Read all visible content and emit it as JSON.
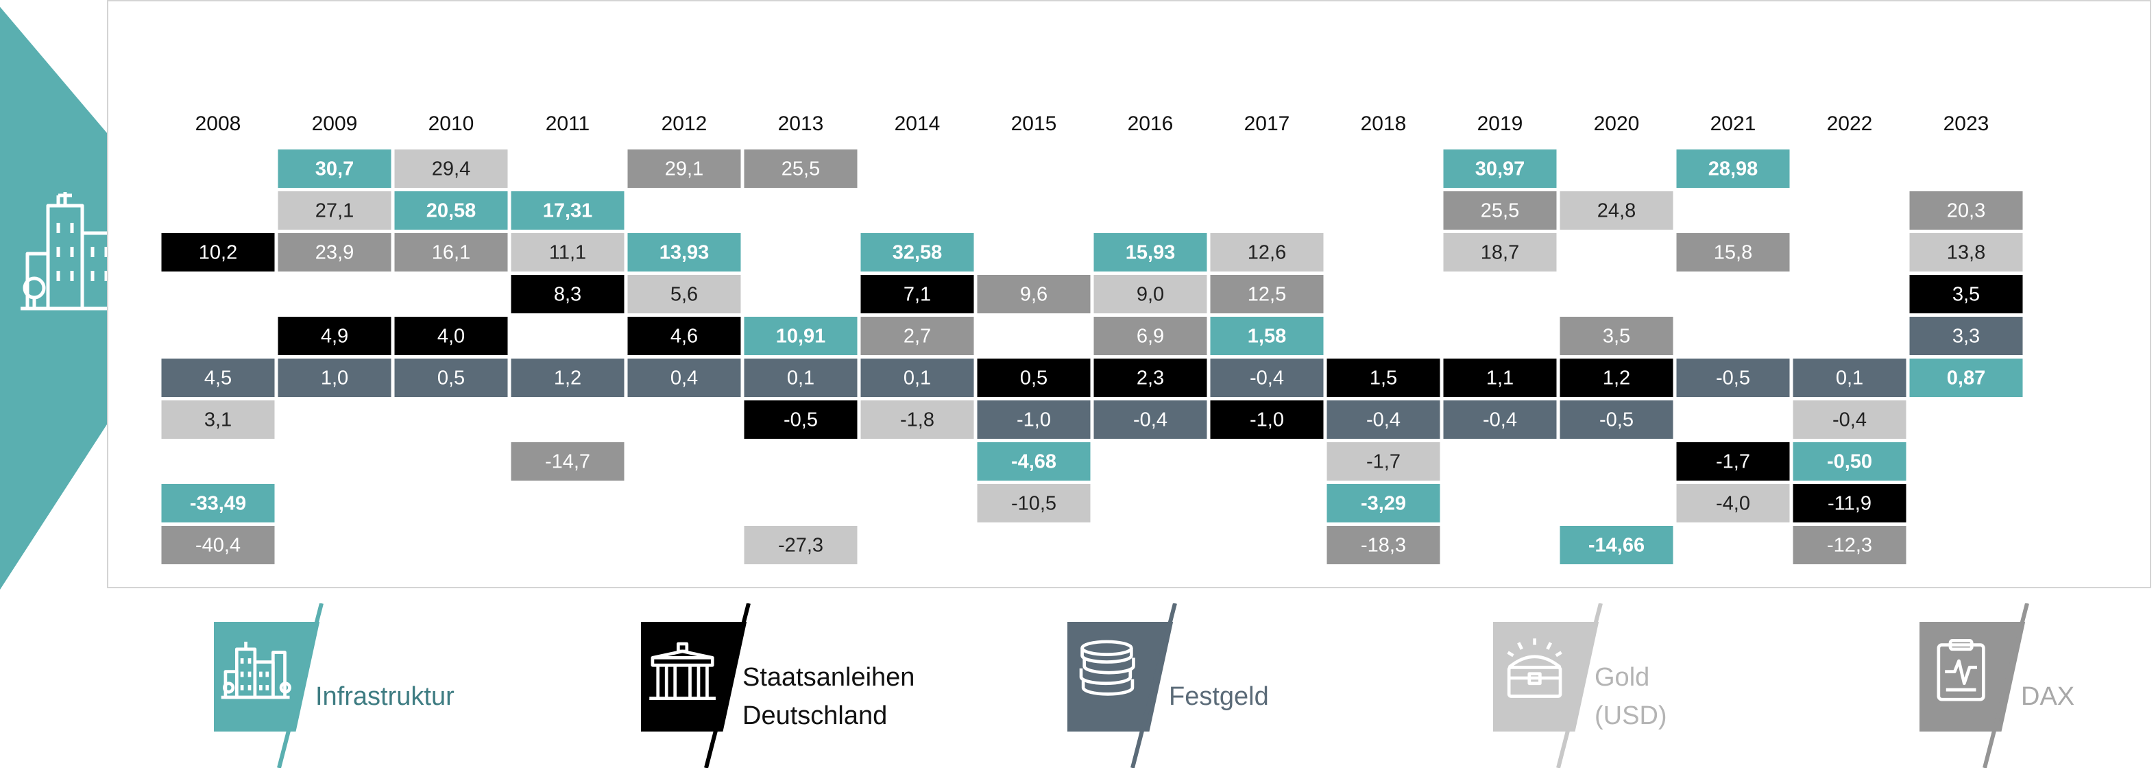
{
  "chart_data": {
    "type": "table",
    "years": [
      "2008",
      "2009",
      "2010",
      "2011",
      "2012",
      "2013",
      "2014",
      "2015",
      "2016",
      "2017",
      "2018",
      "2019",
      "2020",
      "2021",
      "2022",
      "2023"
    ],
    "row_count": 10,
    "categories": {
      "infra": {
        "name": "Infrastruktur",
        "color": "#5aafb0",
        "text_color": "#ffffff",
        "bold": true
      },
      "bund": {
        "name": "Staatsanleihen\nDeutschland",
        "color": "#000000",
        "text_color": "#ffffff",
        "bold": false
      },
      "fest": {
        "name": "Festgeld",
        "color": "#5b6b78",
        "text_color": "#ffffff",
        "bold": false
      },
      "gold": {
        "name": "Gold\n(USD)",
        "color": "#c8c8c8",
        "text_color": "#222222",
        "bold": false
      },
      "dax": {
        "name": "DAX",
        "color": "#959595",
        "text_color": "#ffffff",
        "bold": false
      }
    },
    "cells": [
      {
        "year": "2008",
        "row": 2,
        "value": "10,2",
        "cat": "bund"
      },
      {
        "year": "2008",
        "row": 5,
        "value": "4,5",
        "cat": "fest"
      },
      {
        "year": "2008",
        "row": 6,
        "value": "3,1",
        "cat": "gold"
      },
      {
        "year": "2008",
        "row": 8,
        "value": "-33,49",
        "cat": "infra"
      },
      {
        "year": "2008",
        "row": 9,
        "value": "-40,4",
        "cat": "dax"
      },
      {
        "year": "2009",
        "row": 0,
        "value": "30,7",
        "cat": "infra"
      },
      {
        "year": "2009",
        "row": 1,
        "value": "27,1",
        "cat": "gold"
      },
      {
        "year": "2009",
        "row": 2,
        "value": "23,9",
        "cat": "dax"
      },
      {
        "year": "2009",
        "row": 4,
        "value": "4,9",
        "cat": "bund"
      },
      {
        "year": "2009",
        "row": 5,
        "value": "1,0",
        "cat": "fest"
      },
      {
        "year": "2010",
        "row": 0,
        "value": "29,4",
        "cat": "gold"
      },
      {
        "year": "2010",
        "row": 1,
        "value": "20,58",
        "cat": "infra"
      },
      {
        "year": "2010",
        "row": 2,
        "value": "16,1",
        "cat": "dax"
      },
      {
        "year": "2010",
        "row": 4,
        "value": "4,0",
        "cat": "bund"
      },
      {
        "year": "2010",
        "row": 5,
        "value": "0,5",
        "cat": "fest"
      },
      {
        "year": "2011",
        "row": 1,
        "value": "17,31",
        "cat": "infra"
      },
      {
        "year": "2011",
        "row": 2,
        "value": "11,1",
        "cat": "gold"
      },
      {
        "year": "2011",
        "row": 3,
        "value": "8,3",
        "cat": "bund"
      },
      {
        "year": "2011",
        "row": 5,
        "value": "1,2",
        "cat": "fest"
      },
      {
        "year": "2011",
        "row": 7,
        "value": "-14,7",
        "cat": "dax"
      },
      {
        "year": "2012",
        "row": 0,
        "value": "29,1",
        "cat": "dax"
      },
      {
        "year": "2012",
        "row": 2,
        "value": "13,93",
        "cat": "infra"
      },
      {
        "year": "2012",
        "row": 3,
        "value": "5,6",
        "cat": "gold"
      },
      {
        "year": "2012",
        "row": 4,
        "value": "4,6",
        "cat": "bund"
      },
      {
        "year": "2012",
        "row": 5,
        "value": "0,4",
        "cat": "fest"
      },
      {
        "year": "2013",
        "row": 0,
        "value": "25,5",
        "cat": "dax"
      },
      {
        "year": "2013",
        "row": 4,
        "value": "10,91",
        "cat": "infra"
      },
      {
        "year": "2013",
        "row": 5,
        "value": "0,1",
        "cat": "fest"
      },
      {
        "year": "2013",
        "row": 6,
        "value": "-0,5",
        "cat": "bund"
      },
      {
        "year": "2013",
        "row": 9,
        "value": "-27,3",
        "cat": "gold"
      },
      {
        "year": "2014",
        "row": 2,
        "value": "32,58",
        "cat": "infra"
      },
      {
        "year": "2014",
        "row": 3,
        "value": "7,1",
        "cat": "bund"
      },
      {
        "year": "2014",
        "row": 4,
        "value": "2,7",
        "cat": "dax"
      },
      {
        "year": "2014",
        "row": 5,
        "value": "0,1",
        "cat": "fest"
      },
      {
        "year": "2014",
        "row": 6,
        "value": "-1,8",
        "cat": "gold"
      },
      {
        "year": "2015",
        "row": 3,
        "value": "9,6",
        "cat": "dax"
      },
      {
        "year": "2015",
        "row": 5,
        "value": "0,5",
        "cat": "bund"
      },
      {
        "year": "2015",
        "row": 6,
        "value": "-1,0",
        "cat": "fest"
      },
      {
        "year": "2015",
        "row": 7,
        "value": "-4,68",
        "cat": "infra"
      },
      {
        "year": "2015",
        "row": 8,
        "value": "-10,5",
        "cat": "gold"
      },
      {
        "year": "2016",
        "row": 2,
        "value": "15,93",
        "cat": "infra"
      },
      {
        "year": "2016",
        "row": 3,
        "value": "9,0",
        "cat": "gold"
      },
      {
        "year": "2016",
        "row": 4,
        "value": "6,9",
        "cat": "dax"
      },
      {
        "year": "2016",
        "row": 5,
        "value": "2,3",
        "cat": "bund"
      },
      {
        "year": "2016",
        "row": 6,
        "value": "-0,4",
        "cat": "fest"
      },
      {
        "year": "2017",
        "row": 2,
        "value": "12,6",
        "cat": "gold"
      },
      {
        "year": "2017",
        "row": 3,
        "value": "12,5",
        "cat": "dax"
      },
      {
        "year": "2017",
        "row": 4,
        "value": "1,58",
        "cat": "infra"
      },
      {
        "year": "2017",
        "row": 5,
        "value": "-0,4",
        "cat": "fest"
      },
      {
        "year": "2017",
        "row": 6,
        "value": "-1,0",
        "cat": "bund"
      },
      {
        "year": "2018",
        "row": 5,
        "value": "1,5",
        "cat": "bund"
      },
      {
        "year": "2018",
        "row": 6,
        "value": "-0,4",
        "cat": "fest"
      },
      {
        "year": "2018",
        "row": 7,
        "value": "-1,7",
        "cat": "gold"
      },
      {
        "year": "2018",
        "row": 8,
        "value": "-3,29",
        "cat": "infra"
      },
      {
        "year": "2018",
        "row": 9,
        "value": "-18,3",
        "cat": "dax"
      },
      {
        "year": "2019",
        "row": 0,
        "value": "30,97",
        "cat": "infra"
      },
      {
        "year": "2019",
        "row": 1,
        "value": "25,5",
        "cat": "dax"
      },
      {
        "year": "2019",
        "row": 2,
        "value": "18,7",
        "cat": "gold"
      },
      {
        "year": "2019",
        "row": 5,
        "value": "1,1",
        "cat": "bund"
      },
      {
        "year": "2019",
        "row": 6,
        "value": "-0,4",
        "cat": "fest"
      },
      {
        "year": "2020",
        "row": 1,
        "value": "24,8",
        "cat": "gold"
      },
      {
        "year": "2020",
        "row": 4,
        "value": "3,5",
        "cat": "dax"
      },
      {
        "year": "2020",
        "row": 5,
        "value": "1,2",
        "cat": "bund"
      },
      {
        "year": "2020",
        "row": 6,
        "value": "-0,5",
        "cat": "fest"
      },
      {
        "year": "2020",
        "row": 9,
        "value": "-14,66",
        "cat": "infra"
      },
      {
        "year": "2021",
        "row": 0,
        "value": "28,98",
        "cat": "infra"
      },
      {
        "year": "2021",
        "row": 2,
        "value": "15,8",
        "cat": "dax"
      },
      {
        "year": "2021",
        "row": 5,
        "value": "-0,5",
        "cat": "fest"
      },
      {
        "year": "2021",
        "row": 7,
        "value": "-1,7",
        "cat": "bund"
      },
      {
        "year": "2021",
        "row": 8,
        "value": "-4,0",
        "cat": "gold"
      },
      {
        "year": "2022",
        "row": 5,
        "value": "0,1",
        "cat": "fest"
      },
      {
        "year": "2022",
        "row": 6,
        "value": "-0,4",
        "cat": "gold"
      },
      {
        "year": "2022",
        "row": 7,
        "value": "-0,50",
        "cat": "infra"
      },
      {
        "year": "2022",
        "row": 8,
        "value": "-11,9",
        "cat": "bund"
      },
      {
        "year": "2022",
        "row": 9,
        "value": "-12,3",
        "cat": "dax"
      },
      {
        "year": "2023",
        "row": 1,
        "value": "20,3",
        "cat": "dax"
      },
      {
        "year": "2023",
        "row": 2,
        "value": "13,8",
        "cat": "gold"
      },
      {
        "year": "2023",
        "row": 3,
        "value": "3,5",
        "cat": "bund"
      },
      {
        "year": "2023",
        "row": 4,
        "value": "3,3",
        "cat": "fest"
      },
      {
        "year": "2023",
        "row": 5,
        "value": "0,87",
        "cat": "infra"
      }
    ]
  },
  "legend": [
    {
      "key": "infra",
      "label": "Infrastruktur",
      "icon": "city-buildings-icon",
      "color": "#5aafb0",
      "label_color": "#3e7c82"
    },
    {
      "key": "bund",
      "label": "Staatsanleihen\nDeutschland",
      "icon": "brandenburg-gate-icon",
      "color": "#000000",
      "label_color": "#111111"
    },
    {
      "key": "fest",
      "label": "Festgeld",
      "icon": "coin-stack-icon",
      "color": "#5b6b78",
      "label_color": "#5b6b78"
    },
    {
      "key": "gold",
      "label": "Gold\n(USD)",
      "icon": "treasure-chest-icon",
      "color": "#c8c8c8",
      "label_color": "#b4b4b4"
    },
    {
      "key": "dax",
      "label": "DAX",
      "icon": "clipboard-chart-icon",
      "color": "#959595",
      "label_color": "#a8a8a8"
    }
  ],
  "side_badge": {
    "icon": "city-buildings-icon",
    "color": "#5aafb0"
  }
}
